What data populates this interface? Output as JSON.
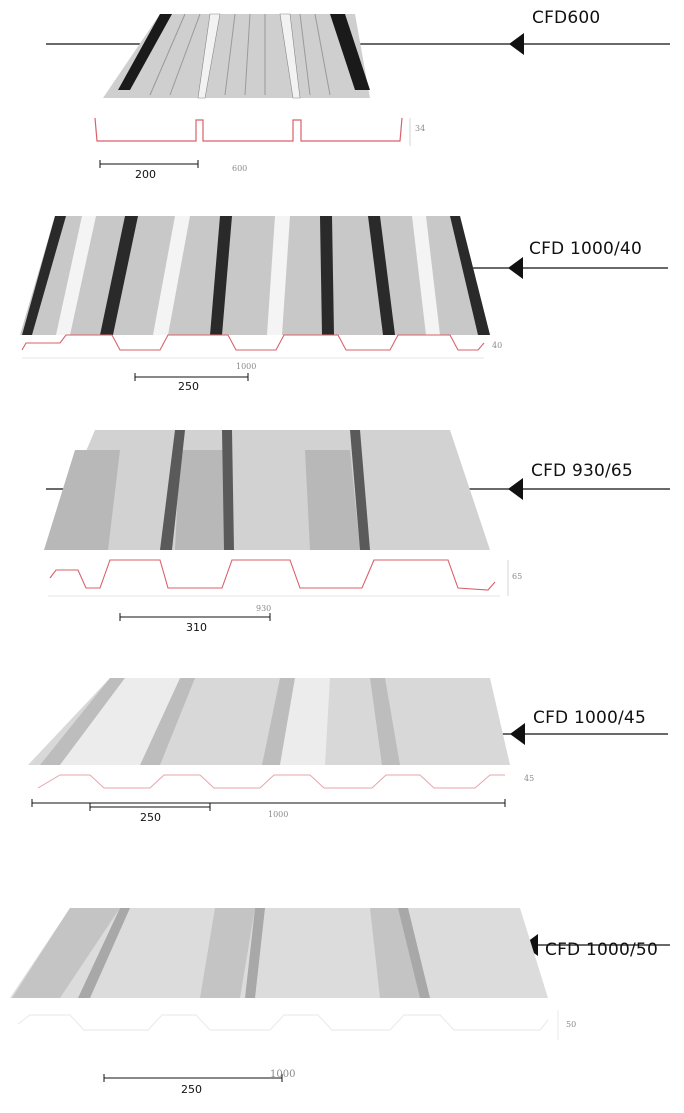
{
  "profiles": [
    {
      "name": "CFD600",
      "pitch": "200",
      "width": "600",
      "height": "34"
    },
    {
      "name": "CFD 1000/40",
      "pitch": "250",
      "width": "1000",
      "height": "40"
    },
    {
      "name": "CFD 930/65",
      "pitch": "310",
      "width": "930",
      "height": "65"
    },
    {
      "name": "CFD 1000/45",
      "pitch": "250",
      "width": "1000",
      "height": "45"
    },
    {
      "name": "CFD 1000/50",
      "pitch": "250",
      "width": "1000",
      "height": "50"
    }
  ],
  "colors": {
    "section_line": "#d9606a",
    "sheet_light": "#d6d6d6",
    "sheet_dark": "#8a8a8a",
    "pointer": "#111111"
  }
}
